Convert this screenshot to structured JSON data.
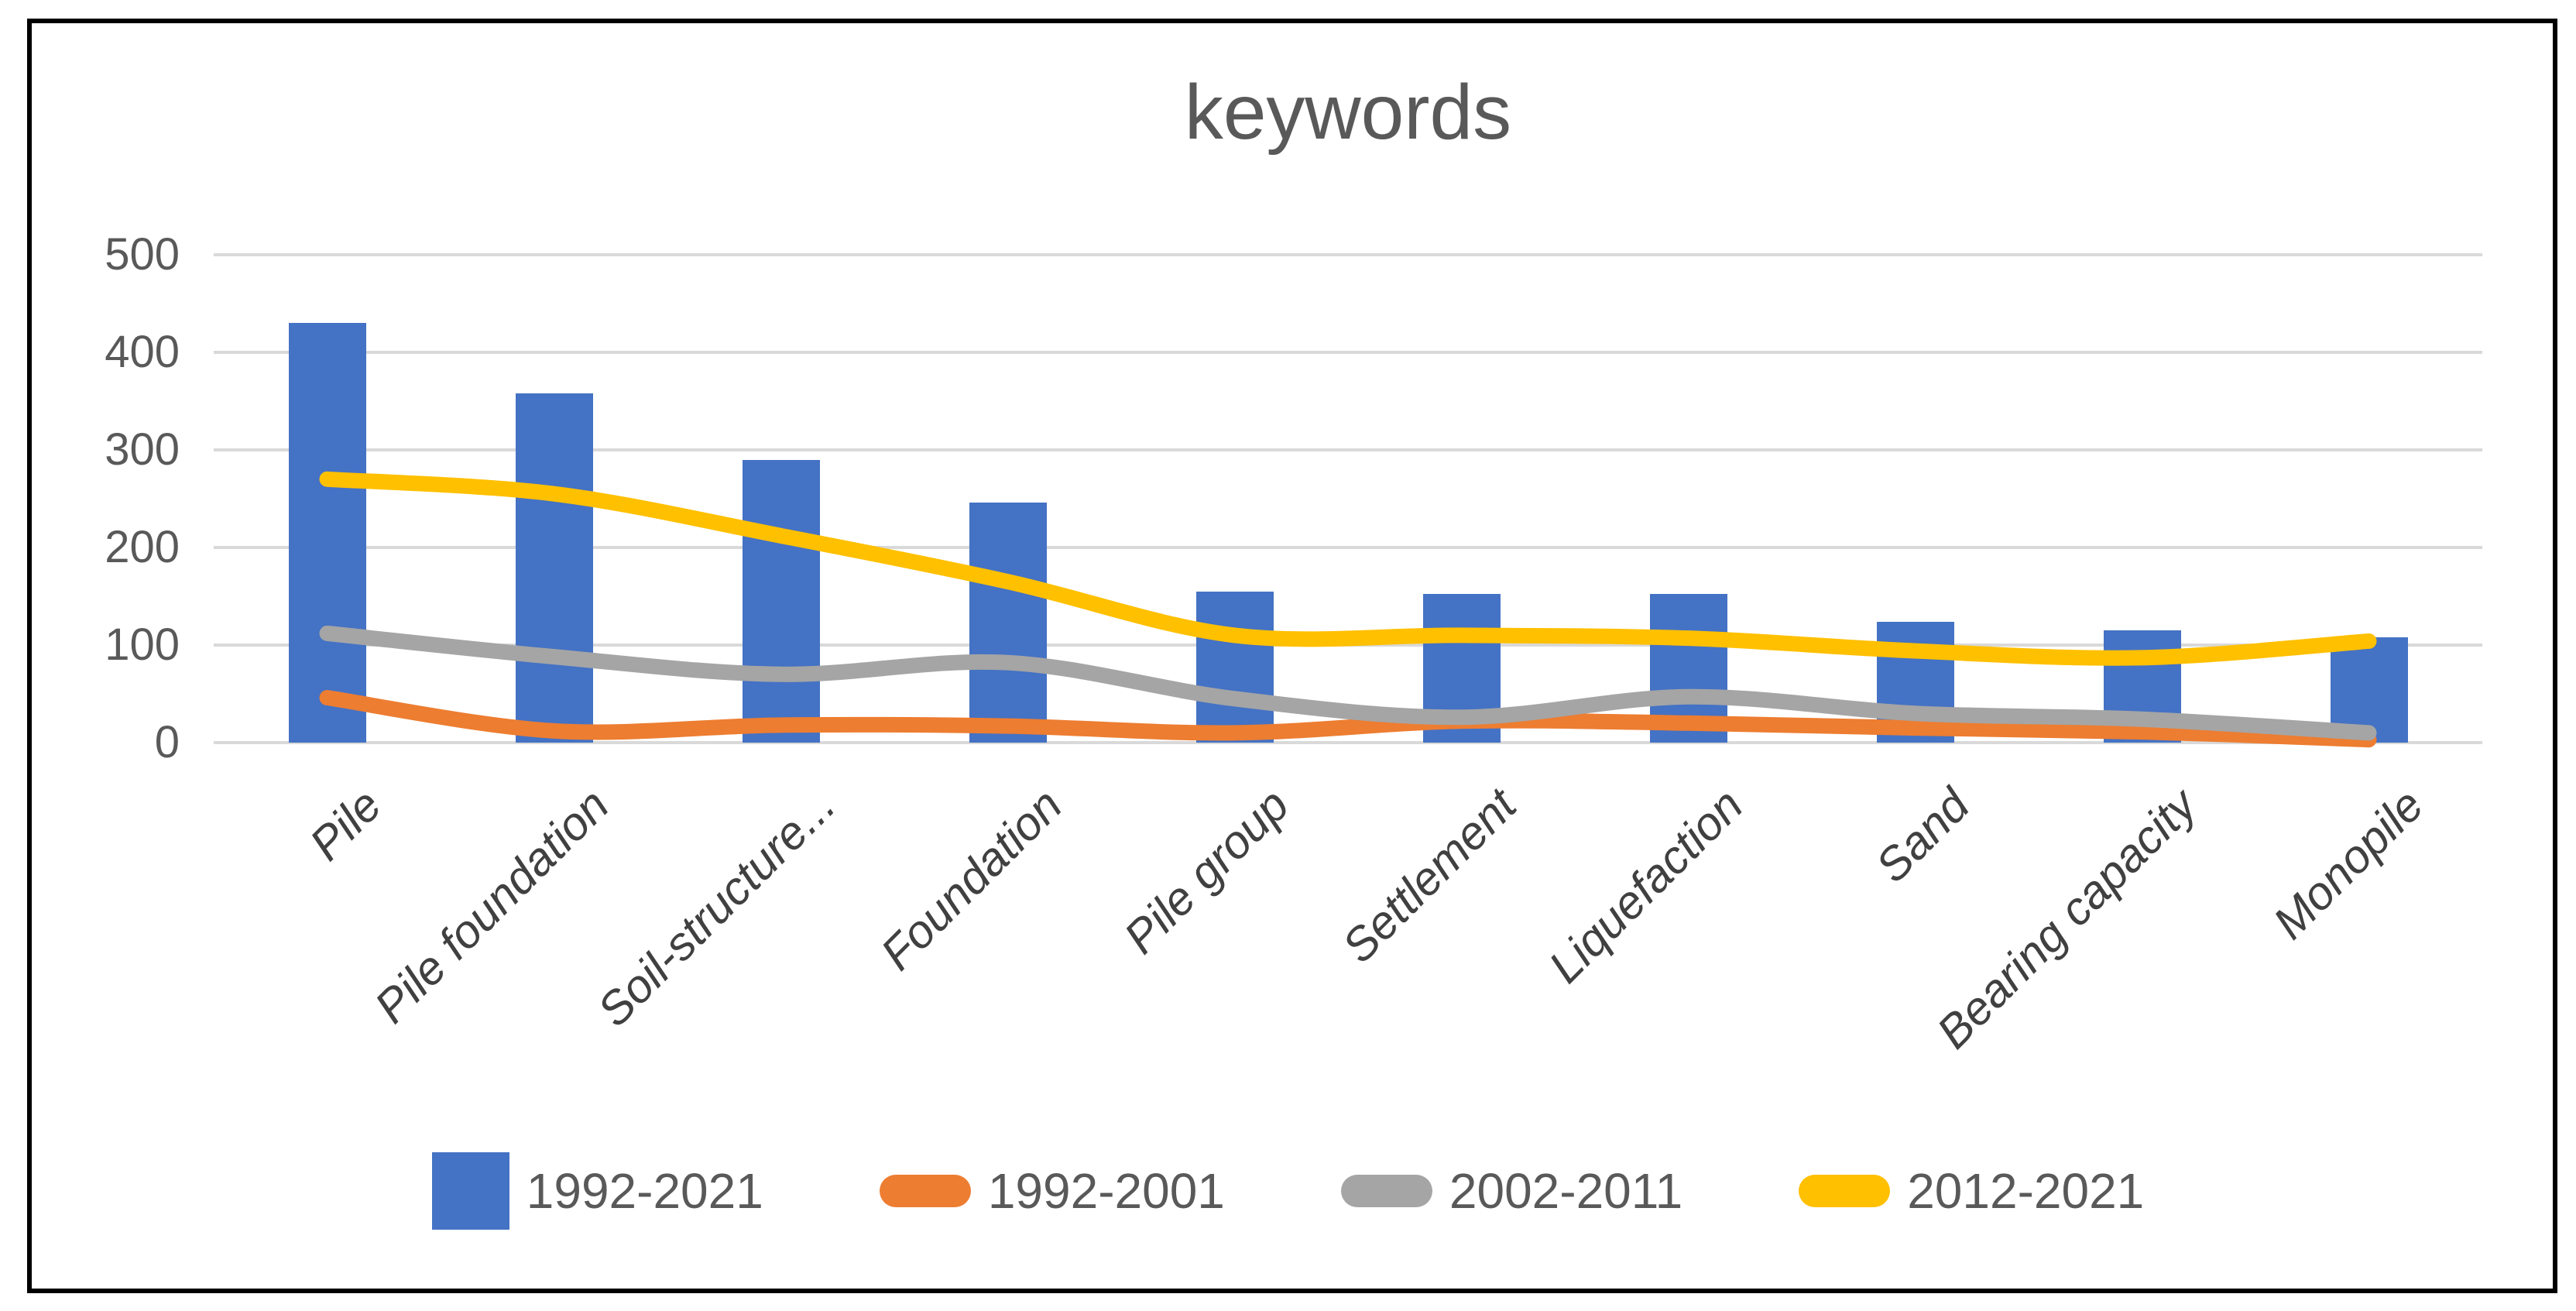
{
  "chart_data": {
    "type": "bar",
    "title": "keywords",
    "categories": [
      "Pile",
      "Pile foundation",
      "Soil-structure...",
      "Foundation",
      "Pile group",
      "Settlement",
      "Liquefaction",
      "Sand",
      "Bearing capacity",
      "Monopile"
    ],
    "series": [
      {
        "name": "1992-2021",
        "type": "bar",
        "color": "#4472C4",
        "values": [
          430,
          358,
          290,
          246,
          155,
          152,
          152,
          124,
          115,
          108
        ]
      },
      {
        "name": "1992-2001",
        "type": "line",
        "color": "#ED7D31",
        "values": [
          46,
          12,
          18,
          17,
          10,
          22,
          20,
          15,
          11,
          3
        ]
      },
      {
        "name": "2002-2011",
        "type": "line",
        "color": "#A5A5A5",
        "values": [
          112,
          88,
          70,
          82,
          45,
          26,
          47,
          30,
          24,
          10
        ]
      },
      {
        "name": "2012-2021",
        "type": "line",
        "color": "#FFC000",
        "values": [
          270,
          255,
          212,
          165,
          110,
          110,
          107,
          94,
          87,
          104
        ]
      }
    ],
    "xlabel": "",
    "ylabel": "",
    "ylim": [
      0,
      500
    ],
    "yticks": [
      500,
      400,
      300,
      200,
      100,
      0
    ],
    "grid": true,
    "legend_position": "bottom"
  },
  "styles": {
    "background": "#FFFFFF",
    "frame_border": "#000000",
    "gridline": "#D9D9D9",
    "title_color": "#595959",
    "tick_label_color": "#595959",
    "category_label_color": "#404040",
    "bar_color": "#4472C4",
    "line_colors": {
      "1992-2001": "#ED7D31",
      "2002-2011": "#A5A5A5",
      "2012-2021": "#FFC000"
    }
  }
}
